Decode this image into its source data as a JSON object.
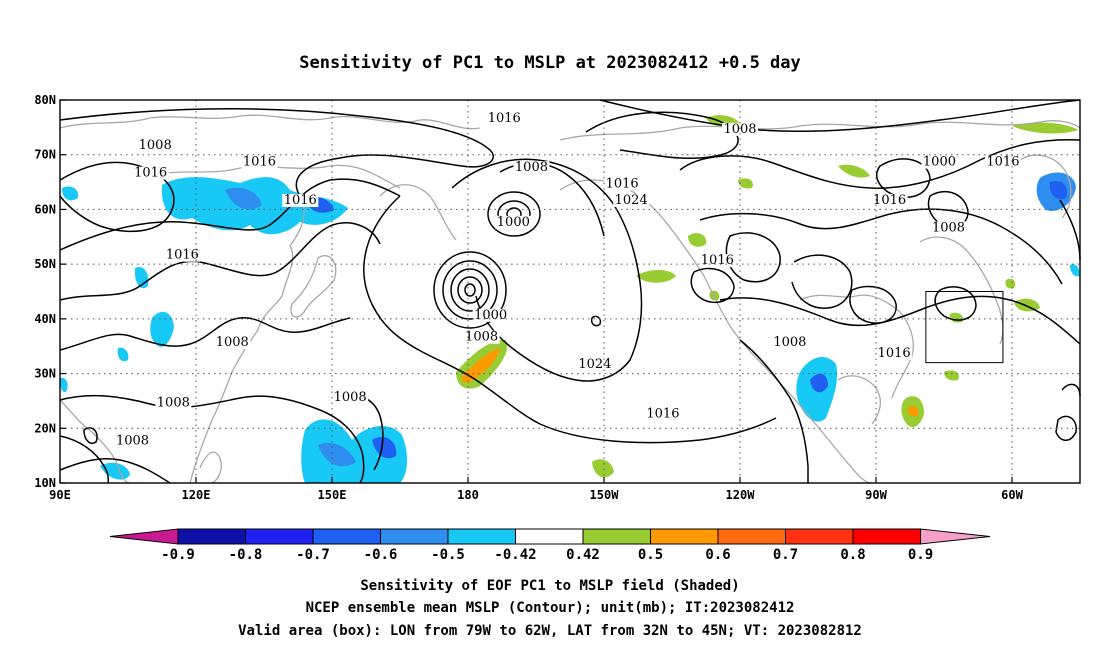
{
  "title": "Sensitivity of PC1 to MSLP at 2023082412 +0.5 day",
  "map": {
    "lon_labels": [
      "90E",
      "120E",
      "150E",
      "180",
      "150W",
      "120W",
      "90W",
      "60W"
    ],
    "lon_values": [
      90,
      120,
      150,
      180,
      210,
      240,
      270,
      300
    ],
    "lat_labels": [
      "80N",
      "70N",
      "60N",
      "50N",
      "40N",
      "30N",
      "20N",
      "10N"
    ],
    "lat_values": [
      80,
      70,
      60,
      50,
      40,
      30,
      20,
      10
    ],
    "lon_range": [
      90,
      315
    ],
    "lat_range": [
      10,
      80
    ],
    "grid": "dotted",
    "contour_labels": [
      {
        "text": "1016",
        "lon": 188,
        "lat": 76
      },
      {
        "text": "1008",
        "lon": 240,
        "lat": 74
      },
      {
        "text": "1008",
        "lon": 111,
        "lat": 71
      },
      {
        "text": "1016",
        "lon": 134,
        "lat": 68
      },
      {
        "text": "1008",
        "lon": 194,
        "lat": 67
      },
      {
        "text": "1000",
        "lon": 284,
        "lat": 68
      },
      {
        "text": "1016",
        "lon": 298,
        "lat": 68
      },
      {
        "text": "1016",
        "lon": 110,
        "lat": 66
      },
      {
        "text": "1016",
        "lon": 214,
        "lat": 64
      },
      {
        "text": "1024",
        "lon": 216,
        "lat": 61
      },
      {
        "text": "1016",
        "lon": 143,
        "lat": 61
      },
      {
        "text": "1016",
        "lon": 273,
        "lat": 61
      },
      {
        "text": "1000",
        "lon": 190,
        "lat": 57
      },
      {
        "text": "1008",
        "lon": 286,
        "lat": 56
      },
      {
        "text": "1016",
        "lon": 117,
        "lat": 51
      },
      {
        "text": "1016",
        "lon": 235,
        "lat": 50
      },
      {
        "text": "1000",
        "lon": 185,
        "lat": 40
      },
      {
        "text": "1008",
        "lon": 183,
        "lat": 36
      },
      {
        "text": "1008",
        "lon": 128,
        "lat": 35
      },
      {
        "text": "1008",
        "lon": 251,
        "lat": 35
      },
      {
        "text": "1024",
        "lon": 208,
        "lat": 31
      },
      {
        "text": "1016",
        "lon": 274,
        "lat": 33
      },
      {
        "text": "1008",
        "lon": 115,
        "lat": 24
      },
      {
        "text": "1008",
        "lon": 154,
        "lat": 25
      },
      {
        "text": "1016",
        "lon": 223,
        "lat": 22
      },
      {
        "text": "1008",
        "lon": 106,
        "lat": 17
      }
    ],
    "valid_box": {
      "lon_w": 281,
      "lon_e": 298,
      "lat_s": 32,
      "lat_n": 45
    }
  },
  "colorbar": {
    "labels": [
      "-0.9",
      "-0.8",
      "-0.7",
      "-0.6",
      "-0.5",
      "-0.42",
      "0.42",
      "0.5",
      "0.6",
      "0.7",
      "0.8",
      "0.9"
    ],
    "colors": [
      "#c81a93",
      "#0f0fa8",
      "#1f1ff0",
      "#2060f0",
      "#2e8ef0",
      "#18c8f5",
      "#ffffff",
      "#99cc33",
      "#ff9900",
      "#ff6a0f",
      "#ff3311",
      "#ff0000",
      "#f5a0c8"
    ]
  },
  "captions": [
    "Sensitivity of EOF PC1 to MSLP field (Shaded)",
    "NCEP ensemble mean MSLP (Contour); unit(mb); IT:2023082412",
    "Valid area (box): LON from 79W to 62W, LAT from 32N to 45N; VT: 2023082812"
  ]
}
